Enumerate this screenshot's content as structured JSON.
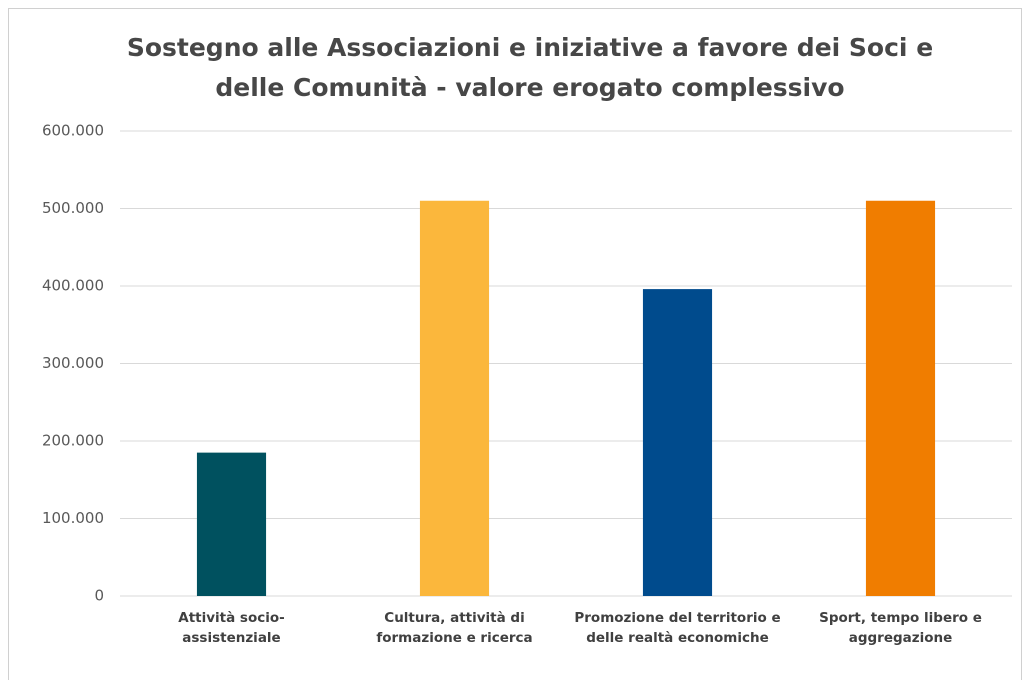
{
  "chart_data": {
    "type": "bar",
    "title": "Sostegno alle Associazioni e iniziative a favore dei Soci e delle Comunità - valore erogato complessivo",
    "categories": [
      "Attività socio-assistenziale",
      "Cultura, attività di formazione e ricerca",
      "Promozione del territorio e delle realtà economiche",
      "Sport, tempo libero e aggregazione"
    ],
    "values": [
      185000,
      510000,
      396000,
      510000
    ],
    "colors": [
      "#00515f",
      "#fbb73c",
      "#004b8d",
      "#f07d00"
    ],
    "ylim": [
      0,
      600000
    ],
    "yticks": [
      0,
      {
        "value": 100000,
        "label": "100.000"
      },
      {
        "value": 200000,
        "label": "200.000"
      },
      {
        "value": 300000,
        "label": "300.000"
      },
      {
        "value": 400000,
        "label": "400.000"
      },
      {
        "value": 500000,
        "label": "500.000"
      },
      {
        "value": 600000,
        "label": "600.000"
      }
    ],
    "grid": true
  }
}
